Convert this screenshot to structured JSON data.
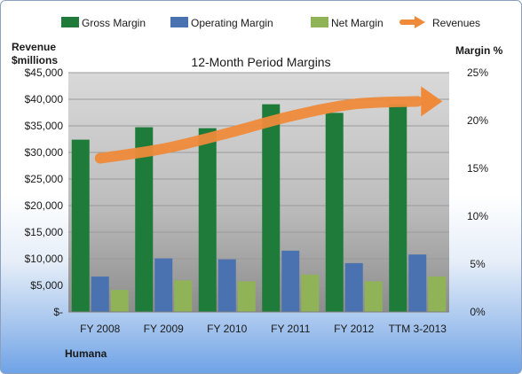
{
  "chart_data": {
    "type": "bar",
    "title": "12-Month Period Margins",
    "company": "Humana",
    "left_axis_label": [
      "Revenue",
      "$millions"
    ],
    "right_axis_label": "Margin %",
    "categories": [
      "FY 2008",
      "FY 2009",
      "FY 2010",
      "FY 2011",
      "FY 2012",
      "TTM 3-2013"
    ],
    "left_ticks": [
      "$-",
      "$5,000",
      "$10,000",
      "$15,000",
      "$20,000",
      "$25,000",
      "$30,000",
      "$35,000",
      "$40,000",
      "$45,000"
    ],
    "right_ticks": [
      "0%",
      "5%",
      "10%",
      "15%",
      "20%",
      "25%"
    ],
    "ylim_left": [
      0,
      45000
    ],
    "ylim_right": [
      0,
      25
    ],
    "grid": true,
    "legend_position": "top",
    "series": [
      {
        "name": "Gross Margin",
        "kind": "bar",
        "axis": "right",
        "color": "#1e7b3a",
        "values": [
          18.0,
          19.3,
          19.2,
          21.7,
          20.8,
          21.7
        ]
      },
      {
        "name": "Operating Margin",
        "kind": "bar",
        "axis": "right",
        "color": "#4a72b0",
        "values": [
          3.7,
          5.6,
          5.5,
          6.4,
          5.1,
          6.0
        ]
      },
      {
        "name": "Net Margin",
        "kind": "bar",
        "axis": "right",
        "color": "#8fb356",
        "values": [
          2.3,
          3.3,
          3.2,
          3.9,
          3.2,
          3.7
        ]
      },
      {
        "name": "Revenues",
        "kind": "line",
        "axis": "left",
        "color": "#ee8a3a",
        "values": [
          28900,
          30700,
          33600,
          36800,
          39100,
          39600
        ]
      }
    ]
  }
}
